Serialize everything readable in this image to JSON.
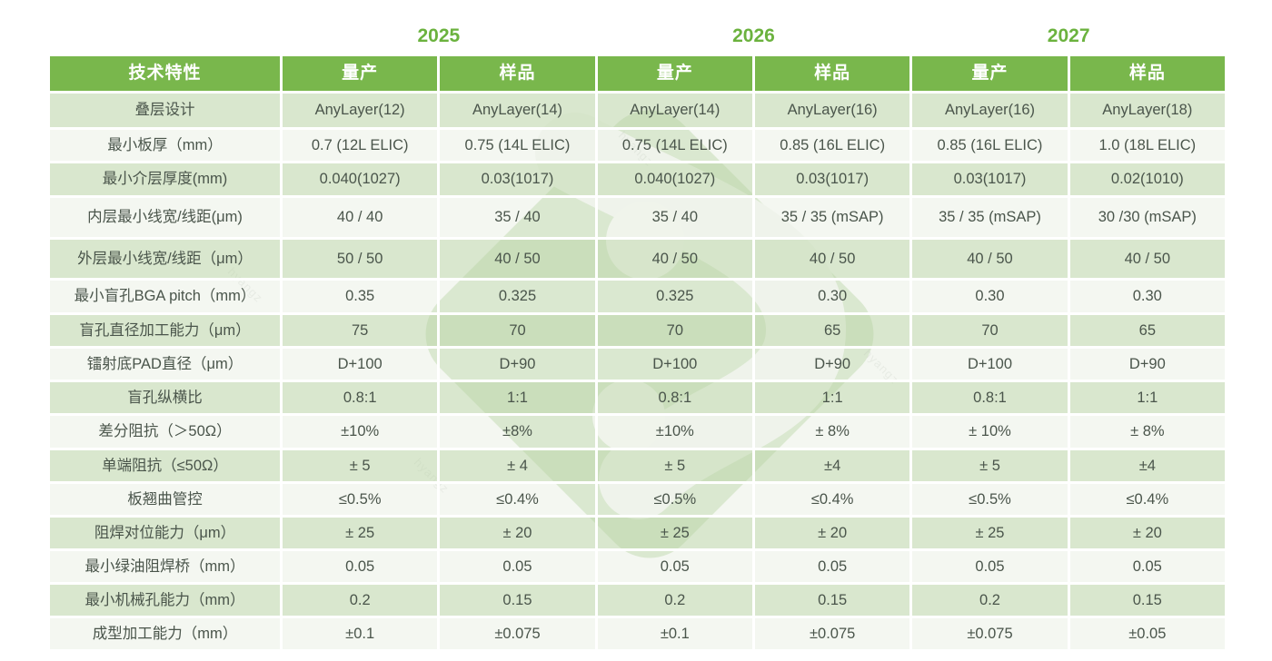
{
  "years": [
    "2025",
    "2026",
    "2027"
  ],
  "header": {
    "feature": "技术特性",
    "subcols": [
      "量产",
      "样品",
      "量产",
      "样品",
      "量产",
      "样品"
    ]
  },
  "rows": [
    {
      "label": "叠层设计",
      "values": [
        "AnyLayer(12)",
        "AnyLayer(14)",
        "AnyLayer(14)",
        "AnyLayer(16)",
        "AnyLayer(16)",
        "AnyLayer(18)"
      ]
    },
    {
      "label": "最小板厚（mm）",
      "values": [
        "0.7 (12L ELIC)",
        "0.75 (14L ELIC)",
        "0.75 (14L ELIC)",
        "0.85 (16L ELIC)",
        "0.85 (16L ELIC)",
        "1.0 (18L ELIC)"
      ]
    },
    {
      "label": "最小介层厚度(mm)",
      "values": [
        "0.040(1027)",
        "0.03(1017)",
        "0.040(1027)",
        "0.03(1017)",
        "0.03(1017)",
        "0.02(1010)"
      ]
    },
    {
      "label": "内层最小线宽/线距(μm)",
      "values": [
        "40 / 40",
        "35 / 40",
        "35 / 40",
        "35 / 35 (mSAP)",
        "35 / 35 (mSAP)",
        "30 /30 (mSAP)"
      ]
    },
    {
      "label": "外层最小线宽/线距（μm）",
      "values": [
        "50 / 50",
        "40 / 50",
        "40 / 50",
        "40 / 50",
        "40 / 50",
        "40 / 50"
      ]
    },
    {
      "label": "最小盲孔BGA pitch（mm）",
      "values": [
        "0.35",
        "0.325",
        "0.325",
        "0.30",
        "0.30",
        "0.30"
      ]
    },
    {
      "label": "盲孔直径加工能力（μm）",
      "values": [
        "75",
        "70",
        "70",
        "65",
        "70",
        "65"
      ]
    },
    {
      "label": "镭射底PAD直径（μm）",
      "values": [
        "D+100",
        "D+90",
        "D+100",
        "D+90",
        "D+100",
        "D+90"
      ]
    },
    {
      "label": "盲孔纵横比",
      "values": [
        "0.8:1",
        "1:1",
        "0.8:1",
        "1:1",
        "0.8:1",
        "1:1"
      ]
    },
    {
      "label": "差分阻抗（＞50Ω）",
      "values": [
        "±10%",
        "±8%",
        "±10%",
        "± 8%",
        "± 10%",
        "± 8%"
      ]
    },
    {
      "label": "单端阻抗（≤50Ω）",
      "values": [
        "± 5",
        "± 4",
        "± 5",
        "±4",
        "± 5",
        "±4"
      ]
    },
    {
      "label": "板翘曲管控",
      "values": [
        "≤0.5%",
        "≤0.4%",
        "≤0.5%",
        "≤0.4%",
        "≤0.5%",
        "≤0.4%"
      ]
    },
    {
      "label": "阻焊对位能力（μm）",
      "values": [
        "± 25",
        "± 20",
        "± 25",
        "± 20",
        "± 25",
        "± 20"
      ]
    },
    {
      "label": "最小绿油阻焊桥（mm）",
      "values": [
        "0.05",
        "0.05",
        "0.05",
        "0.05",
        "0.05",
        "0.05"
      ]
    },
    {
      "label": "最小机械孔能力（mm）",
      "values": [
        "0.2",
        "0.15",
        "0.2",
        "0.15",
        "0.2",
        "0.15"
      ]
    },
    {
      "label": "成型加工能力（mm）",
      "values": [
        "±0.1",
        "±0.075",
        "±0.1",
        "±0.075",
        "±0.075",
        "±0.05"
      ]
    }
  ],
  "watermark": {
    "text": "hyangz"
  },
  "colors": {
    "header_green": "#79b74c",
    "year_green": "#6bb23e",
    "row_sage": "#d8e6cd",
    "row_light": "#f3f7f0",
    "body_text": "#4a554b",
    "logo_green": "#bcd7a9"
  }
}
